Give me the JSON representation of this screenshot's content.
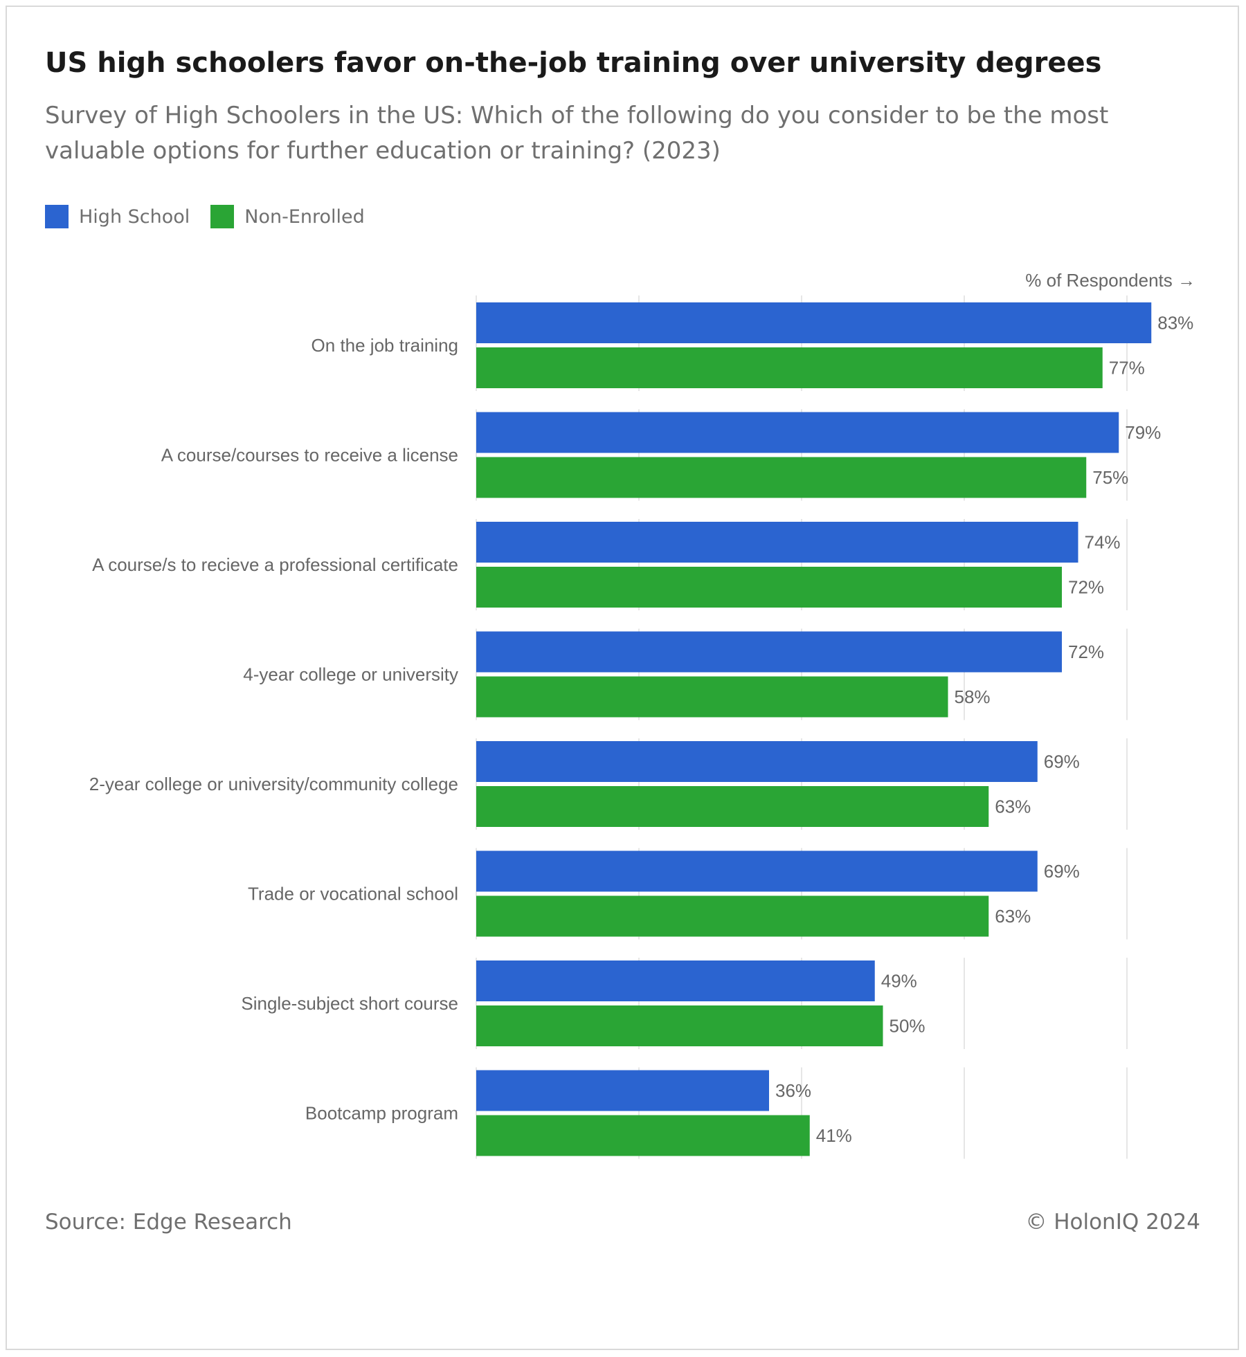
{
  "title": "US high schoolers favor on-the-job training over university degrees",
  "subtitle": "Survey of High Schoolers in the US: Which of the following do you consider to be the most valuable options for further education or training? (2023)",
  "legend": [
    {
      "name": "High School",
      "color": "#2b64d0"
    },
    {
      "name": "Non-Enrolled",
      "color": "#2aa535"
    }
  ],
  "axis_note": "% of Respondents →",
  "source": "Source: Edge Research",
  "copyright": "© HolonIQ 2024",
  "chart_data": {
    "type": "bar",
    "orientation": "horizontal",
    "categories": [
      "On the job training",
      "A course/courses to receive a license",
      "A course/s to recieve a professional certificate",
      "4-year college or university",
      "2-year college or university/community college",
      "Trade or vocational school",
      "Single-subject short course",
      "Bootcamp program"
    ],
    "series": [
      {
        "name": "High School",
        "color": "#2b64d0",
        "values": [
          83,
          79,
          74,
          72,
          69,
          69,
          49,
          36
        ]
      },
      {
        "name": "Non-Enrolled",
        "color": "#2aa535",
        "values": [
          77,
          75,
          72,
          58,
          63,
          63,
          50,
          41
        ]
      }
    ],
    "value_suffix": "%",
    "xlim": [
      0,
      85
    ],
    "gridlines": [
      20,
      40,
      60,
      80
    ],
    "grid": true,
    "legend_position": "top-left"
  }
}
